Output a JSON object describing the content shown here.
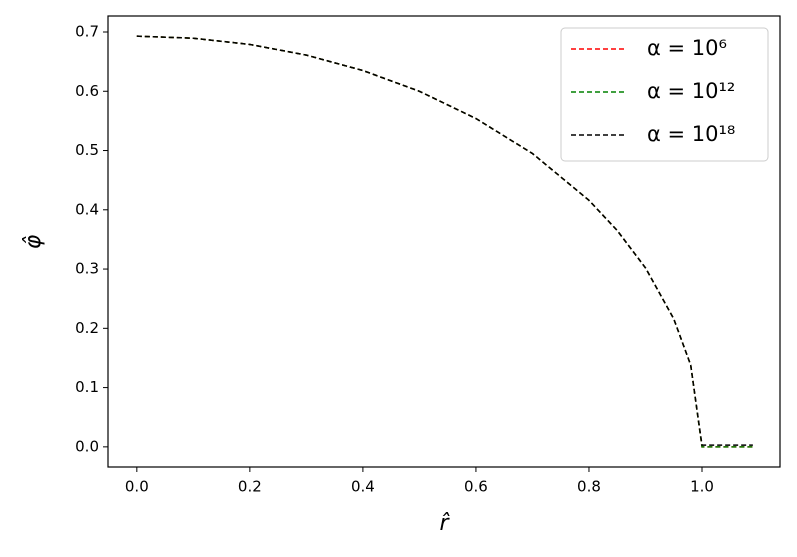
{
  "chart_data": {
    "type": "line",
    "x_label": "r̂",
    "y_label": "φ̂",
    "x": [
      0,
      0.1,
      0.2,
      0.3,
      0.4,
      0.5,
      0.6,
      0.7,
      0.8,
      0.85,
      0.9,
      0.95,
      0.98,
      1.0,
      1.09
    ],
    "series": [
      {
        "name": "α = 10⁶",
        "color": "#ff0000",
        "values": [
          0.693,
          0.6895,
          0.679,
          0.661,
          0.635,
          0.6,
          0.554,
          0.495,
          0.416,
          0.365,
          0.302,
          0.216,
          0.138,
          0.0,
          0.0
        ]
      },
      {
        "name": "α = 10¹²",
        "color": "#008000",
        "values": [
          0.693,
          0.6895,
          0.679,
          0.661,
          0.635,
          0.6,
          0.554,
          0.495,
          0.416,
          0.365,
          0.302,
          0.216,
          0.138,
          0.0,
          0.0
        ]
      },
      {
        "name": "α = 10¹⁸",
        "color": "#000000",
        "values": [
          0.693,
          0.6895,
          0.679,
          0.661,
          0.635,
          0.6,
          0.554,
          0.495,
          0.416,
          0.365,
          0.302,
          0.216,
          0.138,
          0.003,
          0.003
        ]
      }
    ],
    "xlim": [
      -0.051,
      1.138
    ],
    "ylim": [
      -0.034,
      0.727
    ],
    "xticks": [
      {
        "value": 0,
        "label": "0.0"
      },
      {
        "value": 0.2,
        "label": "0.2"
      },
      {
        "value": 0.4,
        "label": "0.4"
      },
      {
        "value": 0.6,
        "label": "0.6"
      },
      {
        "value": 0.8,
        "label": "0.8"
      },
      {
        "value": 1.0,
        "label": "1.0"
      }
    ],
    "yticks": [
      {
        "value": 0,
        "label": "0.0"
      },
      {
        "value": 0.1,
        "label": "0.1"
      },
      {
        "value": 0.2,
        "label": "0.2"
      },
      {
        "value": 0.3,
        "label": "0.3"
      },
      {
        "value": 0.4,
        "label": "0.4"
      },
      {
        "value": 0.5,
        "label": "0.5"
      },
      {
        "value": 0.6,
        "label": "0.6"
      },
      {
        "value": 0.7,
        "label": "0.7"
      }
    ],
    "legend": "upper right",
    "dashed": true
  }
}
